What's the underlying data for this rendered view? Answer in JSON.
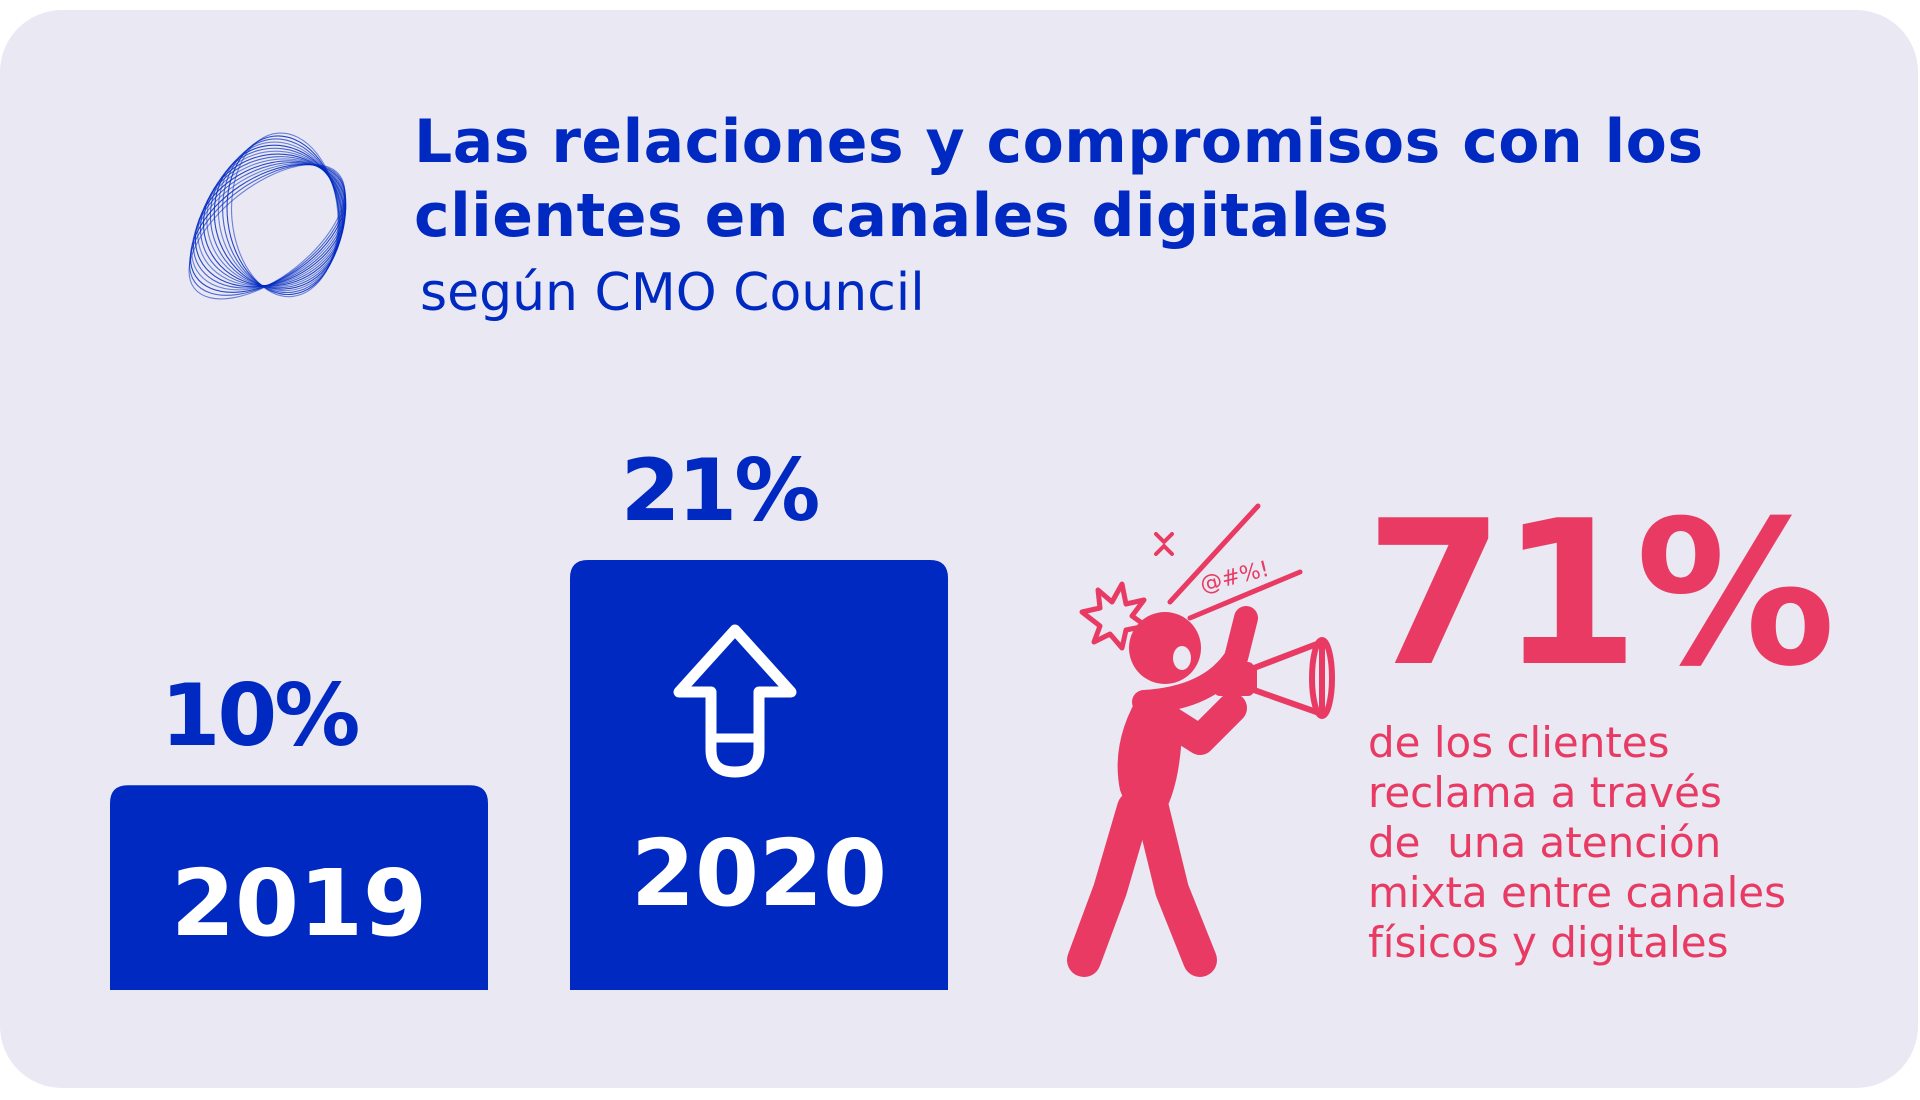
{
  "colors": {
    "background": "#e9e8f3",
    "primary_blue": "#0029c1",
    "accent_pink": "#e83a63",
    "bar_text": "#ffffff"
  },
  "header": {
    "logo_icon": "ring-swirl-logo",
    "title": "Las relaciones y compromisos con los clientes en canales digitales",
    "title_lines": [
      "Las relaciones y compromisos con los",
      "clientes en canales digitales"
    ],
    "subtitle": "según CMO Council"
  },
  "chart_data": {
    "type": "bar",
    "categories": [
      "2019",
      "2020"
    ],
    "values": [
      10,
      21
    ],
    "value_labels": [
      "10%",
      "21%"
    ],
    "unit": "%",
    "trend_icon": "up-arrow-icon",
    "ylim": [
      0,
      21
    ],
    "grid": false,
    "legend": "none"
  },
  "highlight": {
    "icon": "person-shouting-megaphone-icon",
    "exclamation_text": "@#%!",
    "percent": "71%",
    "value": 71,
    "description_lines": [
      "de los clientes",
      "reclama a través",
      "de  una atención",
      "mixta entre canales",
      "físicos y digitales"
    ]
  }
}
